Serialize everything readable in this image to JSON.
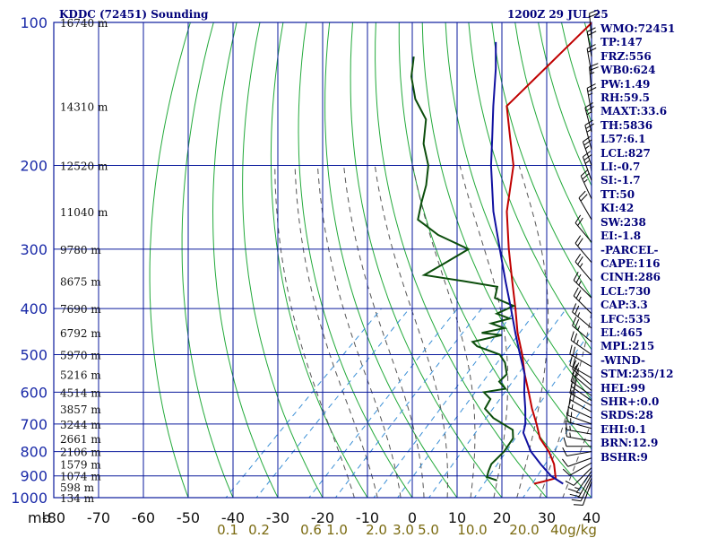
{
  "header": {
    "station": "KDDC (72451) Sounding",
    "time": "1200Z 29 JUL 25"
  },
  "indices": [
    "WMO:72451",
    "TP:147",
    "FRZ:556",
    "WB0:624",
    "PW:1.49",
    "RH:59.5",
    "MAXT:33.6",
    "TH:5836",
    "L57:6.1",
    "LCL:827",
    "LI:-0.7",
    "SI:-1.7",
    "TT:50",
    "KI:42",
    "SW:238",
    "EI:-1.8",
    "-PARCEL-",
    "CAPE:116",
    "CINH:286",
    "LCL:730",
    "CAP:3.3",
    "LFC:535",
    "EL:465",
    "MPL:215",
    "-WIND-",
    "STM:235/12",
    "HEL:99",
    "SHR+:0.0",
    "SRDS:28",
    "EHI:0.1",
    "BRN:12.9",
    "BSHR:9"
  ],
  "colors": {
    "background": "#ffffff",
    "grid": "#0a1a9c",
    "dry_adiabat": "#22a93a",
    "moist_adiabat": "#555555",
    "mixing_ratio": "#3b8fd6",
    "temperature": "#c00000",
    "dewpoint": "#0b4d0b",
    "parcel": "#1010a0",
    "wind_barb": "#000000"
  },
  "chart_data": {
    "type": "line",
    "title": "KDDC (72451) Sounding",
    "pressure_unit_label": "mb",
    "pressure_ticks": [
      {
        "p": 100,
        "label": "100"
      },
      {
        "p": 200,
        "label": "200"
      },
      {
        "p": 300,
        "label": "300"
      },
      {
        "p": 400,
        "label": "400"
      },
      {
        "p": 500,
        "label": "500"
      },
      {
        "p": 600,
        "label": "600"
      },
      {
        "p": 700,
        "label": "700"
      },
      {
        "p": 800,
        "label": "800"
      },
      {
        "p": 900,
        "label": "900"
      },
      {
        "p": 1000,
        "label": "1000"
      }
    ],
    "ylim": [
      100,
      1000
    ],
    "xlim": [
      -80,
      40
    ],
    "temperature_ticks": [
      -80,
      -70,
      -60,
      -50,
      -40,
      -30,
      -20,
      -10,
      0,
      10,
      20,
      30,
      40
    ],
    "temperature_tick_labels": [
      "-80",
      "-70",
      "-60",
      "-50",
      "-40",
      "-30",
      "-20",
      "-10",
      "0",
      "10",
      "20",
      "30",
      "40"
    ],
    "height_labels": [
      {
        "p": 100,
        "label": "16740 m"
      },
      {
        "p": 150,
        "label": "14310 m"
      },
      {
        "p": 200,
        "label": "12520 m"
      },
      {
        "p": 250,
        "label": "11040 m"
      },
      {
        "p": 300,
        "label": "9780 m"
      },
      {
        "p": 350,
        "label": "8675 m"
      },
      {
        "p": 400,
        "label": "7690 m"
      },
      {
        "p": 450,
        "label": "6792 m"
      },
      {
        "p": 500,
        "label": "5970 m"
      },
      {
        "p": 550,
        "label": "5216 m"
      },
      {
        "p": 600,
        "label": "4514 m"
      },
      {
        "p": 650,
        "label": "3857 m"
      },
      {
        "p": 700,
        "label": "3244 m"
      },
      {
        "p": 750,
        "label": "2661 m"
      },
      {
        "p": 800,
        "label": "2106 m"
      },
      {
        "p": 850,
        "label": "1579 m"
      },
      {
        "p": 900,
        "label": "1074 m"
      },
      {
        "p": 950,
        "label": "598 m"
      },
      {
        "p": 1000,
        "label": "134 m"
      }
    ],
    "mixing_ratio_labels": [
      "0.1",
      "0.2",
      "0.6",
      "1.0",
      "2.0",
      "3.0",
      "5.0",
      "10.0",
      "20.0",
      "40g/kg"
    ],
    "mixing_ratio_values": [
      0.1,
      0.2,
      0.6,
      1.0,
      2.0,
      3.0,
      5.0,
      10.0,
      20.0,
      40.0
    ],
    "dry_adiabats_theta_c": [
      -50,
      -40,
      -30,
      -20,
      -10,
      0,
      10,
      20,
      30,
      40,
      50,
      60,
      70,
      80,
      90,
      100,
      110,
      120,
      130,
      140,
      150,
      160,
      170,
      180
    ],
    "moist_adiabats_start_c": [
      -10,
      -5,
      0,
      5,
      10,
      15,
      20,
      25,
      30,
      35,
      40
    ],
    "series": [
      {
        "name": "temperature",
        "points": [
          {
            "p": 935,
            "t": 24.0
          },
          {
            "p": 925,
            "t": 25.5
          },
          {
            "p": 910,
            "t": 27.6
          },
          {
            "p": 900,
            "t": 27.0
          },
          {
            "p": 850,
            "t": 24.0
          },
          {
            "p": 800,
            "t": 20.0
          },
          {
            "p": 750,
            "t": 15.0
          },
          {
            "p": 700,
            "t": 11.0
          },
          {
            "p": 650,
            "t": 6.5
          },
          {
            "p": 600,
            "t": 2.0
          },
          {
            "p": 550,
            "t": -3.0
          },
          {
            "p": 500,
            "t": -8.0
          },
          {
            "p": 450,
            "t": -14.0
          },
          {
            "p": 400,
            "t": -20.0
          },
          {
            "p": 350,
            "t": -27.0
          },
          {
            "p": 300,
            "t": -35.0
          },
          {
            "p": 250,
            "t": -44.0
          },
          {
            "p": 200,
            "t": -53.0
          },
          {
            "p": 175,
            "t": -60.0
          },
          {
            "p": 150,
            "t": -68.0
          },
          {
            "p": 147,
            "t": -68.0
          },
          {
            "p": 125,
            "t": -68.0
          },
          {
            "p": 100,
            "t": -68.0
          }
        ]
      },
      {
        "name": "dewpoint",
        "points": [
          {
            "p": 920,
            "t": 15.0
          },
          {
            "p": 905,
            "t": 12.0
          },
          {
            "p": 880,
            "t": 11.0
          },
          {
            "p": 850,
            "t": 10.0
          },
          {
            "p": 800,
            "t": 10.0
          },
          {
            "p": 750,
            "t": 9.0
          },
          {
            "p": 720,
            "t": 7.0
          },
          {
            "p": 680,
            "t": 0.0
          },
          {
            "p": 650,
            "t": -4.0
          },
          {
            "p": 620,
            "t": -5.0
          },
          {
            "p": 600,
            "t": -8.0
          },
          {
            "p": 590,
            "t": -4.0
          },
          {
            "p": 570,
            "t": -7.0
          },
          {
            "p": 550,
            "t": -7.0
          },
          {
            "p": 520,
            "t": -10.0
          },
          {
            "p": 500,
            "t": -13.0
          },
          {
            "p": 480,
            "t": -20.0
          },
          {
            "p": 470,
            "t": -22.0
          },
          {
            "p": 455,
            "t": -17.0
          },
          {
            "p": 450,
            "t": -22.0
          },
          {
            "p": 440,
            "t": -18.0
          },
          {
            "p": 430,
            "t": -22.0
          },
          {
            "p": 420,
            "t": -19.0
          },
          {
            "p": 410,
            "t": -23.0
          },
          {
            "p": 395,
            "t": -21.0
          },
          {
            "p": 380,
            "t": -27.0
          },
          {
            "p": 360,
            "t": -29.0
          },
          {
            "p": 350,
            "t": -38.0
          },
          {
            "p": 340,
            "t": -48.0
          },
          {
            "p": 320,
            "t": -46.0
          },
          {
            "p": 300,
            "t": -44.0
          },
          {
            "p": 280,
            "t": -54.0
          },
          {
            "p": 260,
            "t": -62.0
          },
          {
            "p": 240,
            "t": -65.0
          },
          {
            "p": 220,
            "t": -68.0
          },
          {
            "p": 200,
            "t": -72.0
          },
          {
            "p": 180,
            "t": -78.0
          },
          {
            "p": 160,
            "t": -83.0
          },
          {
            "p": 145,
            "t": -90.0
          },
          {
            "p": 130,
            "t": -96.0
          },
          {
            "p": 118,
            "t": -100.0
          }
        ]
      },
      {
        "name": "parcel",
        "points": [
          {
            "p": 935,
            "t": 30.5
          },
          {
            "p": 900,
            "t": 26.0
          },
          {
            "p": 850,
            "t": 21.0
          },
          {
            "p": 800,
            "t": 16.0
          },
          {
            "p": 730,
            "t": 10.0
          },
          {
            "p": 700,
            "t": 8.5
          },
          {
            "p": 650,
            "t": 5.0
          },
          {
            "p": 600,
            "t": 1.0
          },
          {
            "p": 550,
            "t": -3.0
          },
          {
            "p": 500,
            "t": -8.5
          },
          {
            "p": 450,
            "t": -14.5
          },
          {
            "p": 400,
            "t": -21.0
          },
          {
            "p": 350,
            "t": -28.5
          },
          {
            "p": 300,
            "t": -37.0
          },
          {
            "p": 250,
            "t": -47.0
          },
          {
            "p": 200,
            "t": -58.0
          },
          {
            "p": 175,
            "t": -64.0
          },
          {
            "p": 150,
            "t": -71.0
          },
          {
            "p": 125,
            "t": -79.0
          },
          {
            "p": 110,
            "t": -85.0
          }
        ]
      }
    ],
    "wind_barbs": [
      {
        "p": 925,
        "dir": 200,
        "spd": 10
      },
      {
        "p": 910,
        "dir": 205,
        "spd": 15
      },
      {
        "p": 895,
        "dir": 210,
        "spd": 15
      },
      {
        "p": 880,
        "dir": 215,
        "spd": 15
      },
      {
        "p": 865,
        "dir": 225,
        "spd": 10
      },
      {
        "p": 845,
        "dir": 240,
        "spd": 10
      },
      {
        "p": 825,
        "dir": 250,
        "spd": 10
      },
      {
        "p": 800,
        "dir": 260,
        "spd": 10
      },
      {
        "p": 780,
        "dir": 270,
        "spd": 10
      },
      {
        "p": 760,
        "dir": 280,
        "spd": 15
      },
      {
        "p": 735,
        "dir": 280,
        "spd": 15
      },
      {
        "p": 715,
        "dir": 285,
        "spd": 15
      },
      {
        "p": 700,
        "dir": 290,
        "spd": 15
      },
      {
        "p": 680,
        "dir": 295,
        "spd": 15
      },
      {
        "p": 660,
        "dir": 300,
        "spd": 20
      },
      {
        "p": 640,
        "dir": 300,
        "spd": 20
      },
      {
        "p": 625,
        "dir": 305,
        "spd": 20
      },
      {
        "p": 610,
        "dir": 305,
        "spd": 20
      },
      {
        "p": 595,
        "dir": 310,
        "spd": 20
      },
      {
        "p": 580,
        "dir": 310,
        "spd": 20
      },
      {
        "p": 560,
        "dir": 300,
        "spd": 25
      },
      {
        "p": 530,
        "dir": 300,
        "spd": 25
      },
      {
        "p": 500,
        "dir": 305,
        "spd": 25
      },
      {
        "p": 470,
        "dir": 310,
        "spd": 25
      },
      {
        "p": 440,
        "dir": 310,
        "spd": 25
      },
      {
        "p": 410,
        "dir": 315,
        "spd": 25
      },
      {
        "p": 380,
        "dir": 315,
        "spd": 25
      },
      {
        "p": 350,
        "dir": 320,
        "spd": 25
      },
      {
        "p": 320,
        "dir": 320,
        "spd": 20
      },
      {
        "p": 290,
        "dir": 320,
        "spd": 20
      },
      {
        "p": 260,
        "dir": 330,
        "spd": 20
      },
      {
        "p": 235,
        "dir": 335,
        "spd": 25
      },
      {
        "p": 215,
        "dir": 340,
        "spd": 25
      },
      {
        "p": 200,
        "dir": 340,
        "spd": 25
      },
      {
        "p": 185,
        "dir": 345,
        "spd": 25
      },
      {
        "p": 170,
        "dir": 345,
        "spd": 25
      },
      {
        "p": 155,
        "dir": 350,
        "spd": 25
      },
      {
        "p": 140,
        "dir": 355,
        "spd": 25
      },
      {
        "p": 128,
        "dir": 350,
        "spd": 20
      },
      {
        "p": 118,
        "dir": 350,
        "spd": 20
      },
      {
        "p": 108,
        "dir": 355,
        "spd": 20
      }
    ]
  }
}
